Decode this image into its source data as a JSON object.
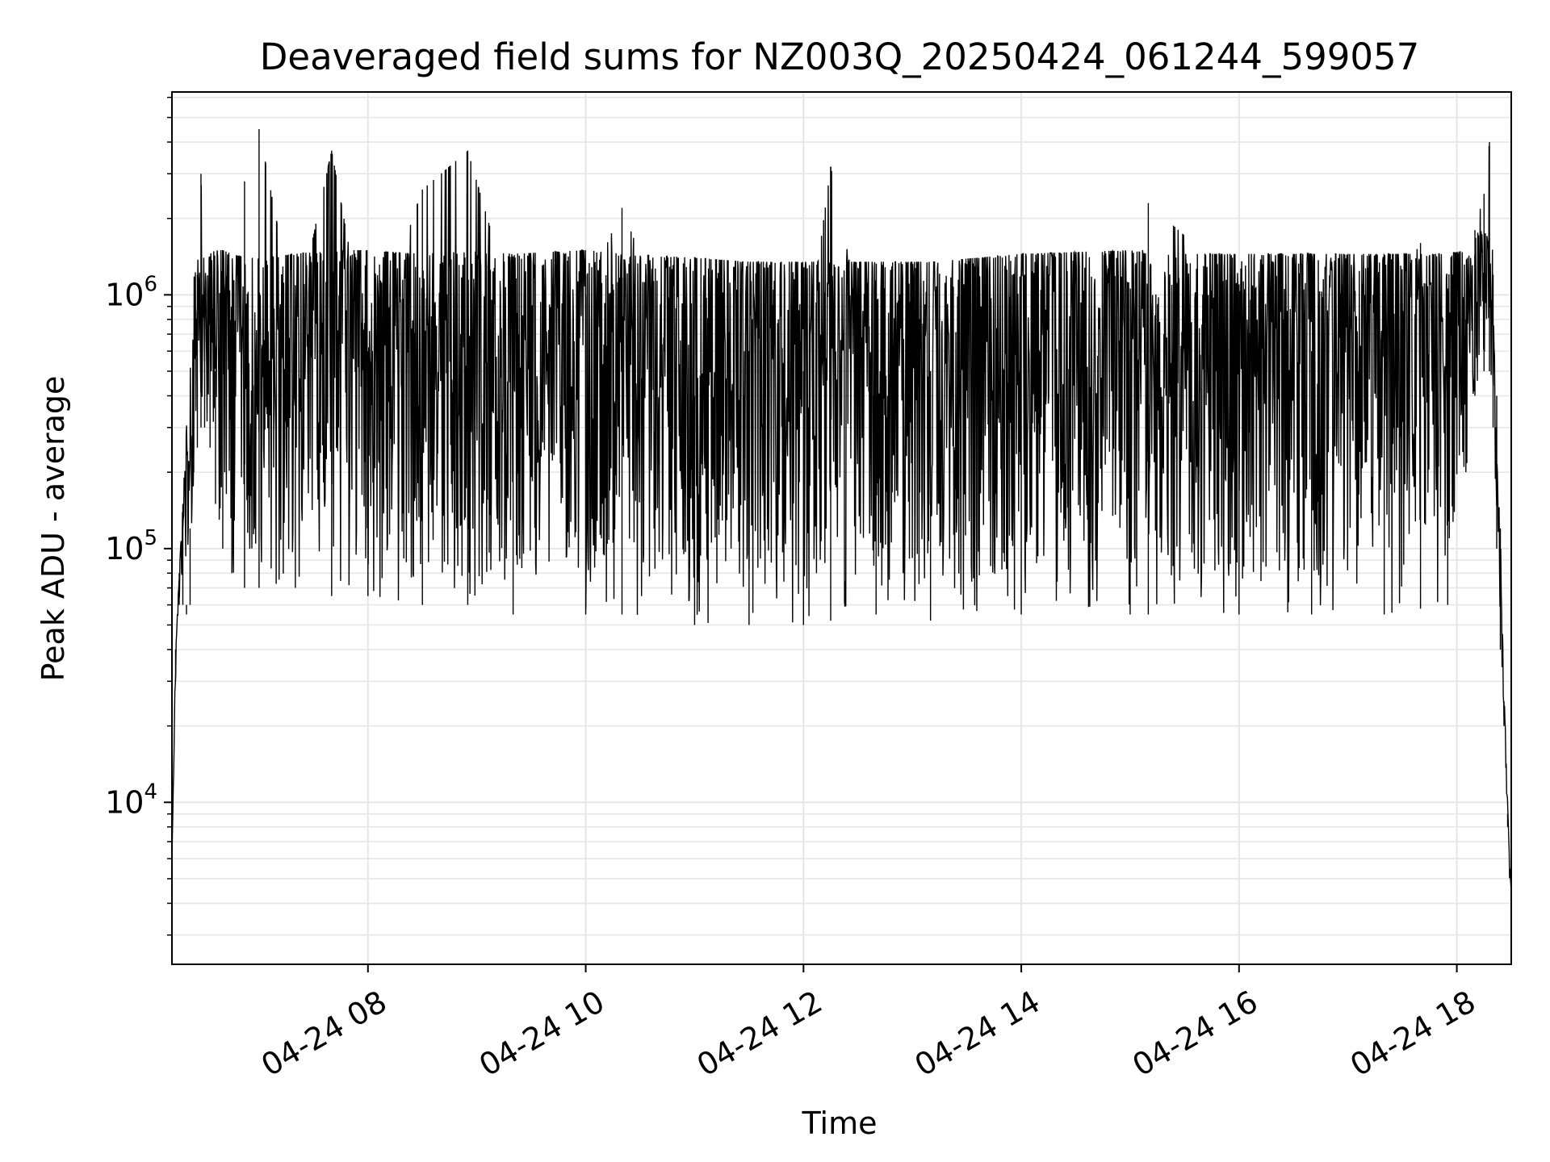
{
  "chart_data": {
    "type": "line",
    "title": "Deaveraged field sums for NZ003Q_20250424_061244_599057",
    "xlabel": "Time",
    "ylabel": "Peak ADU - average",
    "yscale": "log",
    "grid": true,
    "line_color": "#000000",
    "grid_color": "#e6e6e6",
    "xlim": [
      "2025-04-24 06:12",
      "2025-04-24 18:30"
    ],
    "ylim": [
      2300,
      6300000
    ],
    "x_ticks": [
      {
        "value": "2025-04-24 08:00",
        "label": "04-24 08"
      },
      {
        "value": "2025-04-24 10:00",
        "label": "04-24 10"
      },
      {
        "value": "2025-04-24 12:00",
        "label": "04-24 12"
      },
      {
        "value": "2025-04-24 14:00",
        "label": "04-24 14"
      },
      {
        "value": "2025-04-24 16:00",
        "label": "04-24 16"
      },
      {
        "value": "2025-04-24 18:00",
        "label": "04-24 18"
      }
    ],
    "y_ticks": [
      {
        "value": 10000,
        "base": "10",
        "exp": "4"
      },
      {
        "value": 100000,
        "base": "10",
        "exp": "5"
      },
      {
        "value": 1000000,
        "base": "10",
        "exp": "6"
      }
    ],
    "series": [
      {
        "x": [
          "2025-04-24 06:12",
          "2025-04-24 06:14",
          "2025-04-24 06:16",
          "2025-04-24 06:18",
          "2025-04-24 06:20",
          "2025-04-24 06:22",
          "2025-04-24 06:24",
          "2025-04-24 06:26",
          "2025-04-24 06:28",
          "2025-04-24 06:30",
          "2025-04-24 06:33",
          "2025-04-24 06:36",
          "2025-04-24 06:40",
          "2025-04-24 06:45",
          "2025-04-24 06:52",
          "2025-04-24 07:00",
          "2025-04-24 07:20",
          "2025-04-24 07:40",
          "2025-04-24 08:00",
          "2025-04-24 08:30",
          "2025-04-24 08:55",
          "2025-04-24 09:20",
          "2025-04-24 10:00",
          "2025-04-24 10:20",
          "2025-04-24 11:00",
          "2025-04-24 11:30",
          "2025-04-24 12:00",
          "2025-04-24 12:15",
          "2025-04-24 12:40",
          "2025-04-24 13:10",
          "2025-04-24 14:00",
          "2025-04-24 15:00",
          "2025-04-24 15:10",
          "2025-04-24 16:00",
          "2025-04-24 16:40",
          "2025-04-24 17:20",
          "2025-04-24 17:40",
          "2025-04-24 17:55",
          "2025-04-24 18:05",
          "2025-04-24 18:10",
          "2025-04-24 18:15",
          "2025-04-24 18:18",
          "2025-04-24 18:20",
          "2025-04-24 18:22",
          "2025-04-24 18:24",
          "2025-04-24 18:26",
          "2025-04-24 18:28",
          "2025-04-24 18:29",
          "2025-04-24 18:30"
        ],
        "y": [
          6000,
          40000,
          80000,
          150000,
          60000,
          120000,
          400000,
          1200000,
          3000000,
          700000,
          1000000,
          500000,
          900000,
          300000,
          2800000,
          4500000,
          800000,
          3700000,
          600000,
          2600000,
          3700000,
          900000,
          1000000,
          2200000,
          400000,
          600000,
          500000,
          3200000,
          400000,
          500000,
          1200000,
          600000,
          2300000,
          1100000,
          600000,
          900000,
          1600000,
          500000,
          800000,
          1800000,
          2500000,
          4000000,
          1200000,
          400000,
          120000,
          25000,
          9000,
          5000,
          4500
        ],
        "band_low": [
          6000,
          30000,
          60000,
          60000,
          55000,
          60000,
          200000,
          250000,
          300000,
          300000,
          250000,
          150000,
          100000,
          80000,
          70000,
          70000,
          70000,
          65000,
          65000,
          60000,
          60000,
          55000,
          55000,
          55000,
          50000,
          50000,
          50000,
          52000,
          55000,
          52000,
          55000,
          55000,
          55000,
          55000,
          55000,
          55000,
          58000,
          60000,
          200000,
          400000,
          500000,
          500000,
          300000,
          100000,
          40000,
          20000,
          8000,
          5000,
          4500
        ],
        "band_high": [
          6000,
          40000,
          80000,
          150000,
          300000,
          500000,
          1200000,
          1300000,
          1400000,
          1400000,
          1450000,
          1500000,
          1500000,
          1450000,
          1400000,
          1400000,
          1450000,
          1500000,
          1500000,
          1450000,
          1500000,
          1450000,
          1500000,
          1450000,
          1400000,
          1350000,
          1350000,
          1350000,
          1350000,
          1350000,
          1450000,
          1500000,
          1450000,
          1450000,
          1450000,
          1450000,
          1450000,
          1450000,
          1500000,
          1700000,
          2000000,
          1600000,
          900000,
          300000,
          100000,
          30000,
          10000,
          6000,
          4500
        ]
      }
    ]
  }
}
